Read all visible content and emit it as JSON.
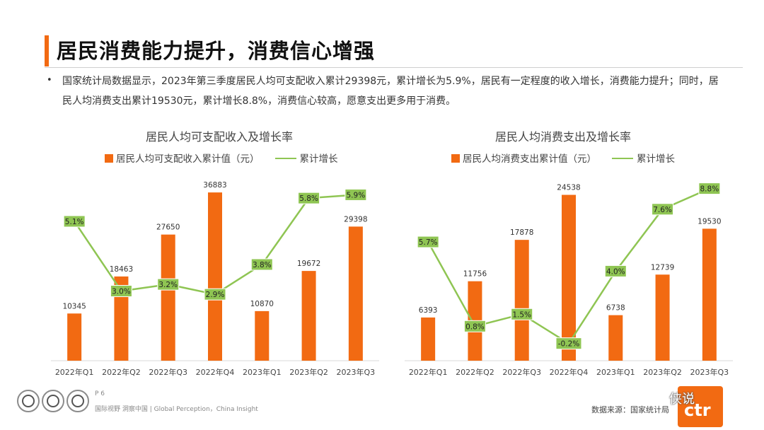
{
  "page": {
    "title": "居民消费能力提升，消费信心增强",
    "bullet_marker": "•",
    "bullet_text": "国家统计局数据显示，2023年第三季度居民人均可支配收入累计29398元，累计增长为5.9%，居民有一定程度的收入增长，消费能力提升；同时，居民人均消费支出累计19530元，累计增长8.8%，消费信心较高，愿意支出更多用于消费。",
    "page_number": "P 6",
    "footer_text": "国际视野 洞察中国 | Global Perception，China Insight",
    "source": "数据来源：国家统计局",
    "watermark": "侠说",
    "brand_logo_text": "ctr"
  },
  "colors": {
    "bar": "#f26a12",
    "line": "#8fc553",
    "label_bg": "#8fc553",
    "accent": "#f26a12"
  },
  "chart_data": [
    {
      "type": "bar",
      "title": "居民人均可支配收入及增长率",
      "categories": [
        "2022年Q1",
        "2022年Q2",
        "2022年Q3",
        "2022年Q4",
        "2023年Q1",
        "2023年Q2",
        "2023年Q3"
      ],
      "series": [
        {
          "name": "居民人均可支配收入累计值（元）",
          "kind": "bar",
          "values": [
            10345,
            18463,
            27650,
            36883,
            10870,
            19672,
            29398
          ],
          "labels": [
            "10345",
            "18463",
            "27650",
            "36883",
            "10870",
            "19672",
            "29398"
          ]
        },
        {
          "name": "累计增长",
          "kind": "line",
          "values": [
            5.1,
            3.0,
            3.2,
            2.9,
            3.8,
            5.8,
            5.9
          ],
          "labels": [
            "5.1%",
            "3.0%",
            "3.2%",
            "2.9%",
            "3.8%",
            "5.8%",
            "5.9%"
          ]
        }
      ],
      "bar_ylim": [
        0,
        40000
      ],
      "line_ylim": [
        0.9,
        6.4
      ],
      "grid": false
    },
    {
      "type": "bar",
      "title": "居民人均消费支出及增长率",
      "categories": [
        "2022年Q1",
        "2022年Q2",
        "2022年Q3",
        "2022年Q4",
        "2023年Q1",
        "2023年Q2",
        "2023年Q3"
      ],
      "series": [
        {
          "name": "居民人均消费支出累计值（元）",
          "kind": "bar",
          "values": [
            6393,
            11756,
            17878,
            24538,
            6738,
            12739,
            19530
          ],
          "labels": [
            "6393",
            "11756",
            "17878",
            "24538",
            "6738",
            "12739",
            "19530"
          ]
        },
        {
          "name": "累计增长",
          "kind": "line",
          "values": [
            5.7,
            0.8,
            1.5,
            -0.2,
            4.0,
            7.6,
            8.8
          ],
          "labels": [
            "5.7%",
            "0.8%",
            "1.5%",
            "-0.2%",
            "4.0%",
            "7.6%",
            "8.8%"
          ]
        }
      ],
      "bar_ylim": [
        0,
        27000
      ],
      "line_ylim": [
        -1.2,
        9.4
      ],
      "grid": false
    }
  ]
}
